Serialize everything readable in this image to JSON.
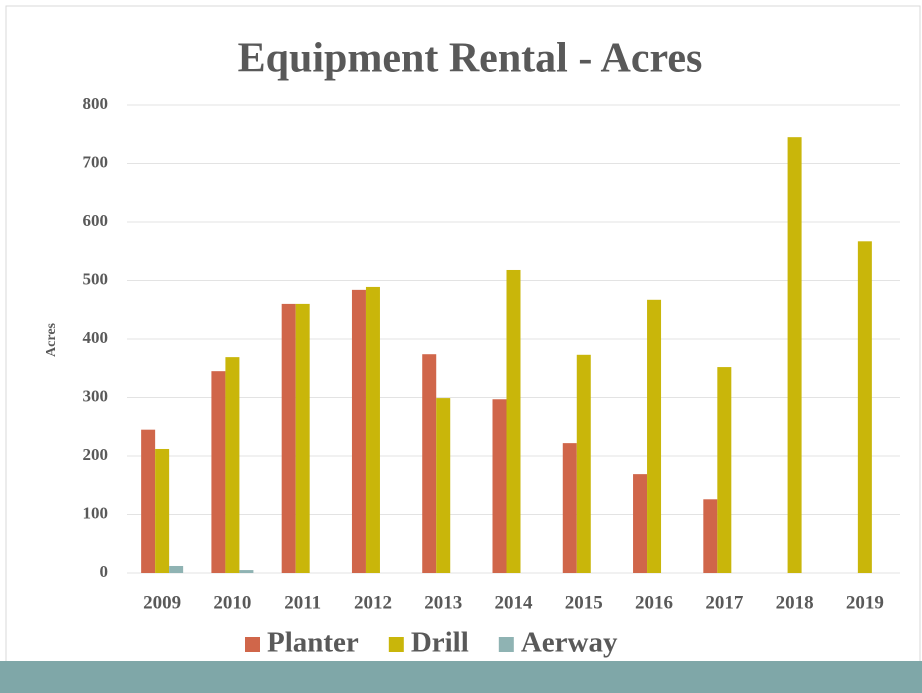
{
  "chart_data": {
    "type": "bar",
    "title": "Equipment Rental - Acres",
    "y_label": "Acres",
    "categories": [
      "2009",
      "2010",
      "2011",
      "2012",
      "2013",
      "2014",
      "2015",
      "2016",
      "2017",
      "2018",
      "2019"
    ],
    "series": [
      {
        "name": "Planter",
        "color": "#d0664a",
        "values": [
          245,
          345,
          460,
          484,
          374,
          297,
          222,
          169,
          126,
          null,
          null
        ]
      },
      {
        "name": "Drill",
        "color": "#c9b60a",
        "values": [
          212,
          369,
          460,
          489,
          299,
          518,
          373,
          467,
          352,
          745,
          567
        ]
      },
      {
        "name": "Aerway",
        "color": "#8fb3b3",
        "values": [
          12,
          5,
          null,
          null,
          null,
          null,
          null,
          null,
          null,
          null,
          null
        ]
      }
    ],
    "ylim": [
      0,
      800
    ],
    "yticks": [
      0,
      100,
      200,
      300,
      400,
      500,
      600,
      700,
      800
    ],
    "grid": true
  }
}
